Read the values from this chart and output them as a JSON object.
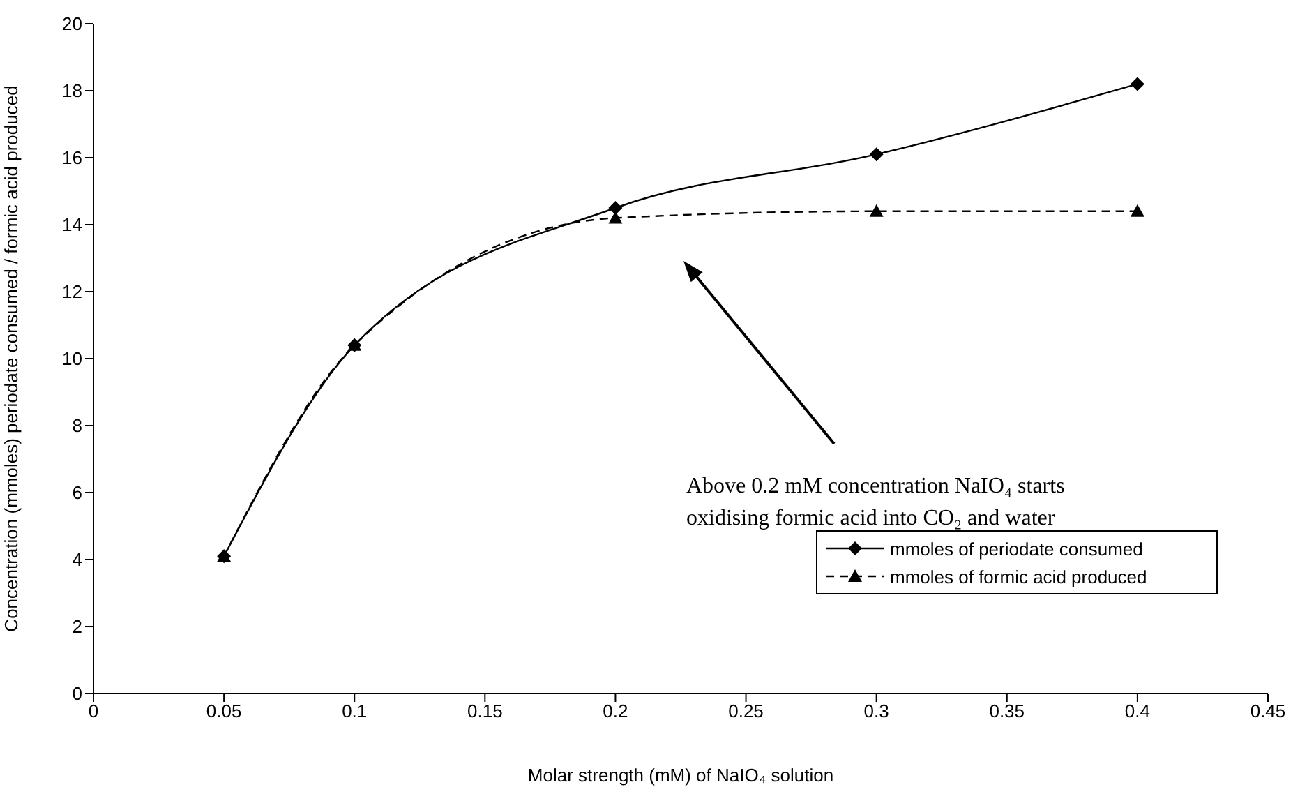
{
  "chart_data": {
    "type": "line",
    "xlabel": "Molar strength (mM) of NaIO₄ solution",
    "ylabel": "Concentration (mmoles) periodate consumed / formic acid produced",
    "x": [
      0.05,
      0.1,
      0.2,
      0.3,
      0.4
    ],
    "series": [
      {
        "name": "mmoles of periodate consumed",
        "color": "#000000",
        "values": [
          4.1,
          10.4,
          14.5,
          16.1,
          18.2
        ],
        "marker": "diamond",
        "line_style": "solid"
      },
      {
        "name": "mmoles of formic acid produced",
        "color": "#000000",
        "values": [
          4.1,
          10.4,
          14.2,
          14.4,
          14.4
        ],
        "marker": "triangle",
        "line_style": "dashed"
      }
    ],
    "xlim": [
      0,
      0.45
    ],
    "xticks": [
      0,
      0.05,
      0.1,
      0.15,
      0.2,
      0.25,
      0.3,
      0.35,
      0.4,
      0.45
    ],
    "ylim": [
      0,
      20
    ],
    "yticks": [
      0,
      2,
      4,
      6,
      8,
      10,
      12,
      14,
      16,
      18,
      20
    ],
    "grid": false,
    "legend": "bottom right",
    "annotations": [
      "Above 0.2 mM concentration NaIO₄ starts oxidising formic acid into CO₂ and water"
    ]
  }
}
